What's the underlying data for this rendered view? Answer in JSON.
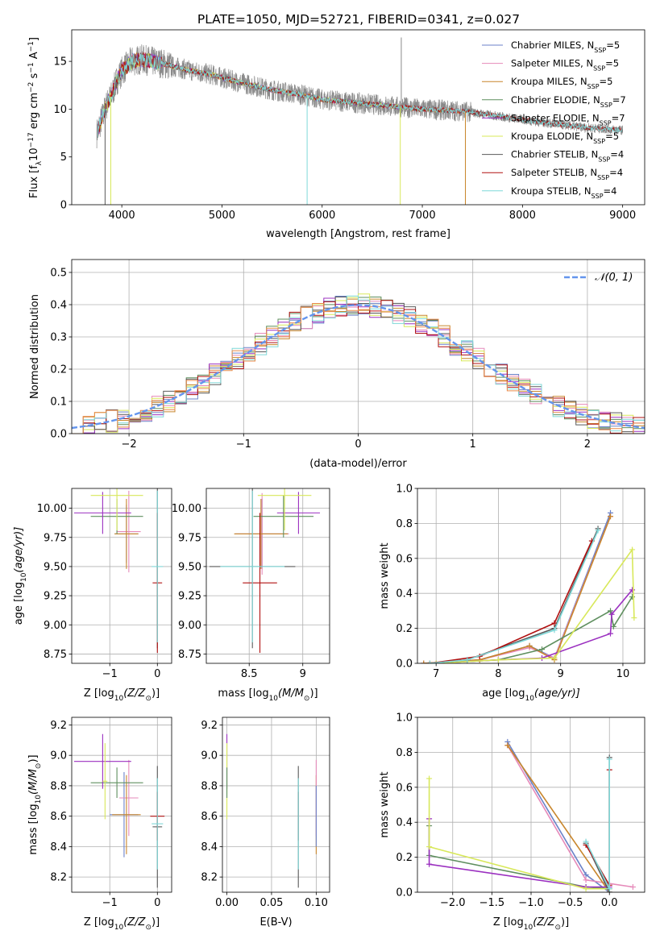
{
  "title": "PLATE=1050, MJD=52721, FIBERID=0341, z=0.027",
  "colors": {
    "Chabrier MILES": "#6b82c8",
    "Salpeter MILES": "#e68aba",
    "Kroupa MILES": "#c8862c",
    "Chabrier ELODIE": "#5f8f5f",
    "Salpeter ELODIE": "#9b30c0",
    "Kroupa ELODIE": "#d8e85a",
    "Chabrier STELIB": "#5a5a5a",
    "Salpeter STELIB": "#b01010",
    "Kroupa STELIB": "#7fd8d8",
    "data": "#8a8a8a",
    "gaussian": "#6495ed",
    "orange_fit": "#e88a4a"
  },
  "chart_data": [
    {
      "id": "spectrum",
      "type": "line",
      "xlabel": "wavelength [Angstrom, rest frame]",
      "ylabel": "Flux [f",
      "ylabel_parts": [
        "Flux [f",
        "λ",
        "10",
        "−17",
        " erg cm",
        "−2",
        " s",
        "−1",
        " A",
        "−1",
        "]"
      ],
      "xlim": [
        3500,
        9220
      ],
      "ylim": [
        0,
        18.3
      ],
      "xticks": [
        4000,
        5000,
        6000,
        7000,
        8000,
        9000
      ],
      "yticks": [
        0,
        5,
        10,
        15
      ],
      "legend_position": "top-right",
      "legend": [
        {
          "label": "Chabrier MILES, N",
          "sub": "SSP",
          "suffix": "=5",
          "series": "Chabrier MILES"
        },
        {
          "label": "Salpeter MILES, N",
          "sub": "SSP",
          "suffix": "=5",
          "series": "Salpeter MILES"
        },
        {
          "label": "Kroupa MILES, N",
          "sub": "SSP",
          "suffix": "=5",
          "series": "Kroupa MILES"
        },
        {
          "label": "Chabrier ELODIE, N",
          "sub": "SSP",
          "suffix": "=7",
          "series": "Chabrier ELODIE"
        },
        {
          "label": "Salpeter ELODIE, N",
          "sub": "SSP",
          "suffix": "=7",
          "series": "Salpeter ELODIE"
        },
        {
          "label": "Kroupa ELODIE, N",
          "sub": "SSP",
          "suffix": "=5",
          "series": "Kroupa ELODIE"
        },
        {
          "label": "Chabrier STELIB, N",
          "sub": "SSP",
          "suffix": "=4",
          "series": "Chabrier STELIB"
        },
        {
          "label": "Salpeter STELIB, N",
          "sub": "SSP",
          "suffix": "=4",
          "series": "Salpeter STELIB"
        },
        {
          "label": "Kroupa STELIB, N",
          "sub": "SSP",
          "suffix": "=4",
          "series": "Kroupa STELIB"
        }
      ],
      "continuum": [
        [
          3750,
          7.5
        ],
        [
          3800,
          9.0
        ],
        [
          3850,
          10.5
        ],
        [
          3900,
          11.5
        ],
        [
          3950,
          13.0
        ],
        [
          4000,
          14.0
        ],
        [
          4100,
          15.0
        ],
        [
          4200,
          15.2
        ],
        [
          4300,
          15.0
        ],
        [
          4400,
          14.8
        ],
        [
          4500,
          14.5
        ],
        [
          4700,
          14.0
        ],
        [
          4900,
          13.6
        ],
        [
          5100,
          13.0
        ],
        [
          5300,
          12.5
        ],
        [
          5500,
          12.0
        ],
        [
          5800,
          11.5
        ],
        [
          6000,
          11.0
        ],
        [
          6300,
          10.7
        ],
        [
          6600,
          10.4
        ],
        [
          7000,
          10.0
        ],
        [
          7400,
          9.8
        ],
        [
          7800,
          9.2
        ],
        [
          8200,
          8.6
        ],
        [
          8600,
          8.1
        ],
        [
          9000,
          7.8
        ]
      ],
      "drops": [
        {
          "wavelength": 3833,
          "value": 0,
          "series": "Chabrier STELIB"
        },
        {
          "wavelength": 3890,
          "value": 0,
          "series": "Kroupa ELODIE"
        },
        {
          "wavelength": 5850,
          "value": 0,
          "series": "Kroupa STELIB"
        },
        {
          "wavelength": 6780,
          "value": 0,
          "series": "Kroupa ELODIE"
        },
        {
          "wavelength": 7430,
          "value": 0,
          "series": "Kroupa MILES"
        }
      ]
    },
    {
      "id": "residuals",
      "type": "line",
      "xlabel": "(data-model)/error",
      "ylabel": "Normed distribution",
      "xlim": [
        -2.5,
        2.5
      ],
      "ylim": [
        0,
        0.54
      ],
      "xticks": [
        -2,
        -1,
        0,
        1,
        2
      ],
      "yticks": [
        0.0,
        0.1,
        0.2,
        0.3,
        0.4,
        0.5
      ],
      "grid": true,
      "legend_position": "top-right",
      "legend": [
        {
          "label": "𝒩(0, 1)",
          "series": "gaussian"
        }
      ],
      "bin_width": 0.1
    },
    {
      "id": "age_vs_Z",
      "type": "scatter",
      "xlabel": "Z [log",
      "xlabel_parts": [
        "Z [log",
        "10",
        "(Z/Z",
        "⊙",
        ")]"
      ],
      "ylabel_parts": [
        "age  [log",
        "10",
        "(age/yr)]"
      ],
      "xlim": [
        -1.8,
        0.3
      ],
      "ylim": [
        8.67,
        10.17
      ],
      "xticks": [
        -1,
        0
      ],
      "yticks": [
        8.75,
        9.0,
        9.25,
        9.5,
        9.75,
        10.0
      ],
      "grid": true,
      "points": [
        {
          "series": "Chabrier MILES",
          "x": -0.65,
          "y": 9.78,
          "xerr": 0.25,
          "yerr": 0.25
        },
        {
          "series": "Salpeter MILES",
          "x": -0.6,
          "y": 9.8,
          "xerr": 0.25,
          "yerr": 0.35
        },
        {
          "series": "Kroupa MILES",
          "x": -0.65,
          "y": 9.78,
          "xerr": 0.25,
          "yerr": 0.3
        },
        {
          "series": "Chabrier ELODIE",
          "x": -0.85,
          "y": 9.93,
          "xerr": 0.55,
          "yerr": 0.15
        },
        {
          "series": "Salpeter ELODIE",
          "x": -1.15,
          "y": 9.96,
          "xerr": 0.6,
          "yerr": 0.18
        },
        {
          "series": "Kroupa ELODIE",
          "x": -0.85,
          "y": 10.11,
          "xerr": 0.55,
          "yerr": 0.3
        },
        {
          "series": "Chabrier STELIB",
          "x": 0.0,
          "y": 9.5,
          "xerr": 0.0,
          "yerr": 0.7
        },
        {
          "series": "Salpeter STELIB",
          "x": 0.0,
          "y": 9.36,
          "xerr": 0.1,
          "yerr": 0.6
        },
        {
          "series": "Kroupa STELIB",
          "x": 0.0,
          "y": 9.5,
          "xerr": 0.12,
          "yerr": 0.65
        }
      ]
    },
    {
      "id": "age_vs_mass",
      "type": "scatter",
      "xlabel_parts": [
        "mass [log",
        "10",
        "(M/M",
        "⊙",
        ")]"
      ],
      "xlim": [
        8.1,
        9.25
      ],
      "ylim": [
        8.67,
        10.17
      ],
      "xticks": [
        8.5,
        9.0
      ],
      "yticks": [
        8.75,
        9.0,
        9.25,
        9.5,
        9.75,
        10.0
      ],
      "grid": true,
      "points": [
        {
          "series": "Chabrier MILES",
          "x": 8.62,
          "y": 9.78,
          "xerr": 0.25,
          "yerr": 0.3
        },
        {
          "series": "Salpeter MILES",
          "x": 8.62,
          "y": 9.78,
          "xerr": 0.25,
          "yerr": 0.35
        },
        {
          "series": "Kroupa MILES",
          "x": 8.61,
          "y": 9.78,
          "xerr": 0.25,
          "yerr": 0.3
        },
        {
          "series": "Chabrier ELODIE",
          "x": 8.82,
          "y": 9.93,
          "xerr": 0.28,
          "yerr": 0.18
        },
        {
          "series": "Salpeter ELODIE",
          "x": 8.96,
          "y": 9.96,
          "xerr": 0.2,
          "yerr": 0.18
        },
        {
          "series": "Kroupa ELODIE",
          "x": 8.83,
          "y": 10.11,
          "xerr": 0.25,
          "yerr": 0.3
        },
        {
          "series": "Chabrier STELIB",
          "x": 8.53,
          "y": 9.5,
          "xerr": 0.4,
          "yerr": 0.7
        },
        {
          "series": "Salpeter STELIB",
          "x": 8.6,
          "y": 9.36,
          "xerr": 0.16,
          "yerr": 0.6
        },
        {
          "series": "Kroupa STELIB",
          "x": 8.53,
          "y": 9.5,
          "xerr": 0.3,
          "yerr": 0.65
        }
      ]
    },
    {
      "id": "weight_vs_age",
      "type": "line",
      "xlabel_parts": [
        "age  [log",
        "10",
        "(age/yr)]"
      ],
      "ylabel": "mass weight",
      "xlim": [
        6.7,
        10.35
      ],
      "ylim": [
        0,
        1.0
      ],
      "xticks": [
        7,
        8,
        9,
        10
      ],
      "yticks": [
        0.0,
        0.2,
        0.4,
        0.6,
        0.8,
        1.0
      ],
      "grid": true,
      "series": [
        {
          "name": "Chabrier MILES",
          "x": [
            6.8,
            7.7,
            8.5,
            8.9,
            9.8
          ],
          "y": [
            0.0,
            0.02,
            0.1,
            0.03,
            0.86
          ]
        },
        {
          "name": "Salpeter MILES",
          "x": [
            6.8,
            7.7,
            8.5,
            8.9,
            9.8
          ],
          "y": [
            0.0,
            0.02,
            0.09,
            0.03,
            0.84
          ]
        },
        {
          "name": "Kroupa MILES",
          "x": [
            6.8,
            7.7,
            8.5,
            8.9,
            9.8
          ],
          "y": [
            0.0,
            0.02,
            0.1,
            0.02,
            0.84
          ]
        },
        {
          "name": "Chabrier ELODIE",
          "x": [
            7.0,
            7.5,
            8.0,
            8.7,
            9.8,
            9.85,
            10.15
          ],
          "y": [
            0.0,
            0.01,
            0.02,
            0.08,
            0.3,
            0.21,
            0.38
          ]
        },
        {
          "name": "Salpeter ELODIE",
          "x": [
            7.0,
            7.5,
            8.0,
            8.7,
            9.8,
            9.82,
            10.15
          ],
          "y": [
            0.0,
            0.01,
            0.02,
            0.03,
            0.17,
            0.28,
            0.42
          ]
        },
        {
          "name": "Kroupa ELODIE",
          "x": [
            7.0,
            7.5,
            8.0,
            8.9,
            10.15,
            10.18
          ],
          "y": [
            0.0,
            0.01,
            0.02,
            0.03,
            0.65,
            0.26
          ]
        },
        {
          "name": "Chabrier STELIB",
          "x": [
            6.9,
            7.5,
            8.9,
            9.6
          ],
          "y": [
            0.0,
            0.02,
            0.2,
            0.77
          ]
        },
        {
          "name": "Salpeter STELIB",
          "x": [
            6.9,
            7.7,
            8.9,
            9.5
          ],
          "y": [
            0.0,
            0.04,
            0.23,
            0.7
          ]
        },
        {
          "name": "Kroupa STELIB",
          "x": [
            6.9,
            7.5,
            8.9,
            9.6
          ],
          "y": [
            0.0,
            0.02,
            0.19,
            0.76
          ]
        }
      ]
    },
    {
      "id": "mass_vs_Z",
      "type": "scatter",
      "xlabel_parts": [
        "Z [log",
        "10",
        "(Z/Z",
        "⊙",
        ")]"
      ],
      "ylabel_parts": [
        "mass [log",
        "10",
        "(M/M",
        "⊙",
        ")]"
      ],
      "xlim": [
        -1.8,
        0.3
      ],
      "ylim": [
        8.1,
        9.25
      ],
      "xticks": [
        -1,
        0
      ],
      "yticks": [
        8.2,
        8.4,
        8.6,
        8.8,
        9.0,
        9.2
      ],
      "grid": true,
      "points": [
        {
          "series": "Chabrier MILES",
          "x": -0.7,
          "y": 8.61,
          "xerr": 0.3,
          "yerr": 0.28
        },
        {
          "series": "Salpeter MILES",
          "x": -0.6,
          "y": 8.72,
          "xerr": 0.2,
          "yerr": 0.25
        },
        {
          "series": "Kroupa MILES",
          "x": -0.65,
          "y": 8.61,
          "xerr": 0.3,
          "yerr": 0.26
        },
        {
          "series": "Chabrier ELODIE",
          "x": -0.85,
          "y": 8.82,
          "xerr": 0.55,
          "yerr": 0.1
        },
        {
          "series": "Salpeter ELODIE",
          "x": -1.15,
          "y": 8.96,
          "xerr": 0.6,
          "yerr": 0.18
        },
        {
          "series": "Kroupa ELODIE",
          "x": -1.1,
          "y": 8.83,
          "xerr": 0.05,
          "yerr": 0.25
        },
        {
          "series": "Chabrier STELIB",
          "x": 0.0,
          "y": 8.53,
          "xerr": 0.1,
          "yerr": 0.4
        },
        {
          "series": "Salpeter STELIB",
          "x": 0.0,
          "y": 8.6,
          "xerr": 0.15,
          "yerr": 0.16
        },
        {
          "series": "Kroupa STELIB",
          "x": 0.0,
          "y": 8.55,
          "xerr": 0.12,
          "yerr": 0.3
        }
      ]
    },
    {
      "id": "mass_vs_ebv",
      "type": "scatter",
      "xlabel": "E(B-V)",
      "xlim": [
        -0.005,
        0.115
      ],
      "ylim": [
        8.1,
        9.25
      ],
      "xticks": [
        0.0,
        0.05,
        0.1
      ],
      "xticklabels": [
        "0.00",
        "0.05",
        "0.10"
      ],
      "yticks": [
        8.2,
        8.4,
        8.6,
        8.8,
        9.0,
        9.2
      ],
      "grid": true,
      "points": [
        {
          "series": "Kroupa MILES",
          "x": 0.1,
          "y": 8.61,
          "yerr": 0.26
        },
        {
          "series": "Salpeter MILES",
          "x": 0.1,
          "y": 8.72,
          "yerr": 0.25
        },
        {
          "series": "Chabrier MILES",
          "x": 0.1,
          "y": 8.6,
          "yerr": 0.2
        },
        {
          "series": "Salpeter ELODIE",
          "x": 0.0,
          "y": 8.96,
          "yerr": 0.18
        },
        {
          "series": "Kroupa ELODIE",
          "x": 0.0,
          "y": 8.83,
          "yerr": 0.25
        },
        {
          "series": "Chabrier ELODIE",
          "x": 0.0,
          "y": 8.82,
          "yerr": 0.1
        },
        {
          "series": "Salpeter STELIB",
          "x": 0.08,
          "y": 8.6,
          "yerr": 0.16
        },
        {
          "series": "Chabrier STELIB",
          "x": 0.08,
          "y": 8.53,
          "yerr": 0.4
        },
        {
          "series": "Kroupa STELIB",
          "x": 0.08,
          "y": 8.55,
          "yerr": 0.3
        }
      ]
    },
    {
      "id": "weight_vs_Z",
      "type": "line",
      "xlabel_parts": [
        "Z [log",
        "10",
        "(Z/Z",
        "⊙",
        ")]"
      ],
      "ylabel": "mass weight",
      "xlim": [
        -2.45,
        0.45
      ],
      "ylim": [
        0,
        1.0
      ],
      "xticks": [
        -2.0,
        -1.5,
        -1.0,
        -0.5,
        0.0
      ],
      "xticklabels": [
        "−2.0",
        "−1.5",
        "−1.0",
        "−0.5",
        "0.0"
      ],
      "yticks": [
        0.0,
        0.2,
        0.4,
        0.6,
        0.8,
        1.0
      ],
      "grid": true,
      "series": [
        {
          "name": "Chabrier MILES",
          "x": [
            -1.3,
            -0.3,
            0.0
          ],
          "y": [
            0.86,
            0.1,
            0.0
          ]
        },
        {
          "name": "Salpeter MILES",
          "x": [
            -1.3,
            -0.3,
            0.3
          ],
          "y": [
            0.84,
            0.07,
            0.03
          ]
        },
        {
          "name": "Kroupa MILES",
          "x": [
            -1.3,
            0.0
          ],
          "y": [
            0.84,
            0.0
          ]
        },
        {
          "name": "Chabrier ELODIE",
          "x": [
            -2.3,
            -2.3,
            -0.3,
            0.0
          ],
          "y": [
            0.38,
            0.21,
            0.03,
            0.02
          ]
        },
        {
          "name": "Salpeter ELODIE",
          "x": [
            -2.3,
            -2.3,
            -0.3,
            0.0
          ],
          "y": [
            0.42,
            0.16,
            0.03,
            0.03
          ]
        },
        {
          "name": "Kroupa ELODIE",
          "x": [
            -2.3,
            -2.3,
            -0.3,
            0.0
          ],
          "y": [
            0.65,
            0.26,
            0.02,
            0.02
          ]
        },
        {
          "name": "Chabrier STELIB",
          "x": [
            -0.3,
            0.0,
            0.0
          ],
          "y": [
            0.28,
            0.0,
            0.77
          ]
        },
        {
          "name": "Salpeter STELIB",
          "x": [
            -0.3,
            0.0,
            0.0
          ],
          "y": [
            0.27,
            0.04,
            0.7
          ]
        },
        {
          "name": "Kroupa STELIB",
          "x": [
            -0.3,
            0.0,
            0.0
          ],
          "y": [
            0.29,
            0.02,
            0.76
          ]
        }
      ]
    }
  ]
}
